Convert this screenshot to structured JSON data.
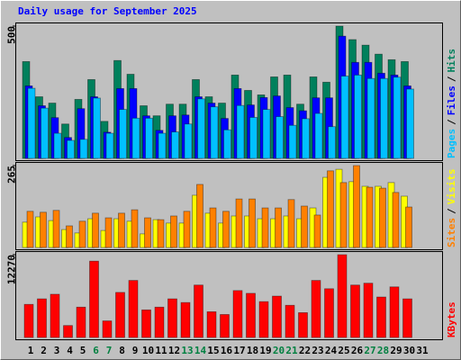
{
  "chart_data": {
    "type": "bar",
    "title": "Daily usage for September 2025",
    "title_color": "#0000ff",
    "legend_separator": "/",
    "categories": [
      "1",
      "2",
      "3",
      "4",
      "5",
      "6",
      "7",
      "8",
      "9",
      "10",
      "11",
      "12",
      "13",
      "14",
      "15",
      "16",
      "17",
      "18",
      "19",
      "20",
      "21",
      "22",
      "23",
      "24",
      "25",
      "26",
      "27",
      "28",
      "29",
      "30",
      "31"
    ],
    "category_colors": [
      "#000000",
      "#000000",
      "#000000",
      "#000000",
      "#000000",
      "#008040",
      "#008040",
      "#000000",
      "#000000",
      "#000000",
      "#000000",
      "#000000",
      "#008040",
      "#008040",
      "#000000",
      "#000000",
      "#000000",
      "#000000",
      "#000000",
      "#008040",
      "#008040",
      "#000000",
      "#000000",
      "#000000",
      "#000000",
      "#000000",
      "#008040",
      "#008040",
      "#000000",
      "#000000",
      "#000000"
    ],
    "panels": [
      {
        "ylim": [
          0,
          500
        ],
        "yticks": [
          500
        ],
        "series": [
          {
            "name": "Hits",
            "color": "#00805c",
            "values": [
              366,
              233,
              209,
              130,
              223,
              298,
              140,
              370,
              318,
              199,
              161,
              205,
              205,
              298,
              233,
              209,
              315,
              257,
              240,
              308,
              315,
              205,
              308,
              288,
              500,
              449,
              428,
              394,
              373,
              366,
              null
            ]
          },
          {
            "name": "Files",
            "color": "#0000ff",
            "values": [
              274,
              199,
              154,
              79,
              188,
              233,
              99,
              264,
              264,
              161,
              106,
              161,
              164,
              233,
              209,
              151,
              264,
              202,
              230,
              236,
              192,
              180,
              229,
              229,
              462,
              363,
              363,
              322,
              315,
              274,
              null
            ]
          },
          {
            "name": "Pages",
            "color": "#00c0ff",
            "values": [
              265,
              190,
              95,
              68,
              72,
              228,
              95,
              185,
              152,
              152,
              95,
              100,
              130,
              225,
              195,
              108,
              200,
              155,
              185,
              158,
              125,
              150,
              170,
              120,
              311,
              315,
              302,
              302,
              307,
              262,
              null
            ]
          }
        ]
      },
      {
        "ylim": [
          0,
          265
        ],
        "yticks": [
          265
        ],
        "series": [
          {
            "name": "Visits",
            "color": "#ffff00",
            "values": [
              82,
              99,
              87,
              58,
              47,
              93,
              55,
              93,
              85,
              44,
              90,
              79,
              79,
              169,
              111,
              79,
              102,
              102,
              93,
              93,
              102,
              93,
              128,
              227,
              253,
              213,
              198,
              198,
              210,
              166,
              null
            ]
          },
          {
            "name": "Sites",
            "color": "#ff8000",
            "values": [
              117,
              114,
              120,
              70,
              85,
              111,
              96,
              111,
              122,
              96,
              90,
              102,
              117,
              204,
              128,
              117,
              157,
              157,
              128,
              128,
              155,
              134,
              105,
              248,
              210,
              265,
              195,
              192,
              178,
              131,
              null
            ]
          }
        ]
      },
      {
        "ylim": [
          0,
          12270
        ],
        "yticks": [
          12270
        ],
        "series": [
          {
            "name": "KBytes",
            "color": "#ff0000",
            "values": [
              4908,
              5726,
              6408,
              1772,
              4499,
              11315,
              2454,
              6681,
              8453,
              4090,
              4499,
              5726,
              5181,
              7771,
              3817,
              3408,
              6953,
              6544,
              5317,
              6135,
              4772,
              3681,
              8453,
              7226,
              12270,
              7771,
              8044,
              5999,
              7498,
              5726,
              null
            ]
          }
        ]
      }
    ]
  }
}
